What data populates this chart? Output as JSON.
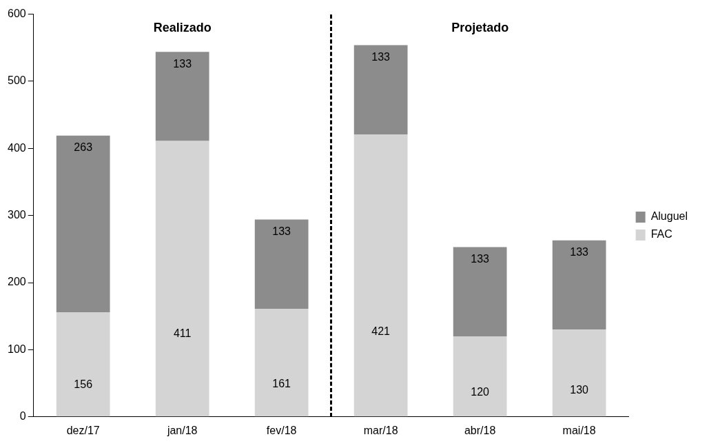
{
  "chart_data": {
    "type": "bar",
    "stacked": true,
    "categories": [
      "dez/17",
      "jan/18",
      "fev/18",
      "mar/18",
      "abr/18",
      "mai/18"
    ],
    "series": [
      {
        "name": "FAC",
        "color": "#d4d4d4",
        "values": [
          156,
          411,
          161,
          421,
          120,
          130
        ]
      },
      {
        "name": "Aluguel",
        "color": "#8c8c8c",
        "values": [
          263,
          133,
          133,
          133,
          133,
          133
        ]
      }
    ],
    "ylim": [
      0,
      600
    ],
    "yticks": [
      0,
      100,
      200,
      300,
      400,
      500,
      600
    ],
    "grid": false,
    "legend": "right",
    "data_labels": true,
    "annotations": [
      "Realizado",
      "Projetado"
    ]
  }
}
